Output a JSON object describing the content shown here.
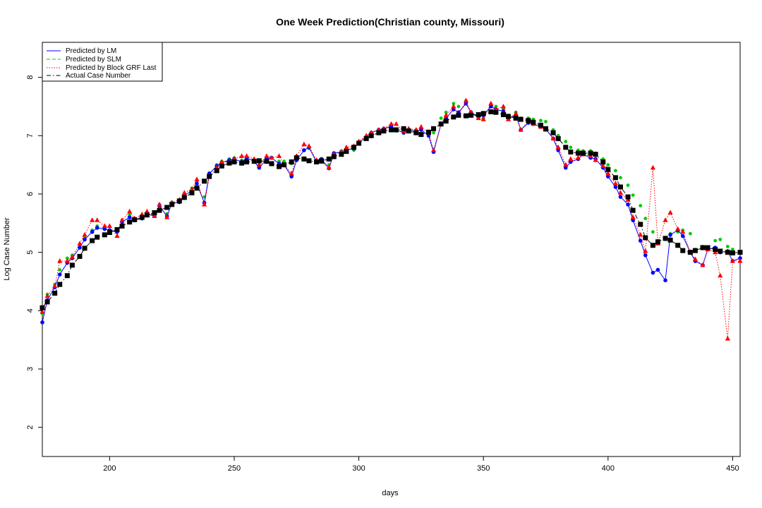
{
  "chart_data": {
    "type": "line",
    "title": "One Week Prediction(Christian county, Missouri)",
    "xlabel": "days",
    "ylabel": "Log Case Number",
    "xlim": [
      173,
      453
    ],
    "ylim": [
      1.5,
      8.6
    ],
    "xticks": [
      200,
      250,
      300,
      350,
      400,
      450
    ],
    "yticks": [
      2,
      3,
      4,
      5,
      6,
      7,
      8
    ],
    "legend_position": "top-left",
    "grid": false,
    "colors": {
      "lm": "#0000ff",
      "slm": "#00cc00",
      "grf": "#ff0000",
      "actual": "#000000"
    },
    "legend": [
      {
        "key": "lm",
        "label": "Predicted by LM",
        "style": "solid"
      },
      {
        "key": "slm",
        "label": "Predicted by SLM",
        "style": "dashed"
      },
      {
        "key": "grf",
        "label": "Predicted by Block GRF Last",
        "style": "dotted"
      },
      {
        "key": "actual",
        "label": "Actual Case Number",
        "style": "dashdot"
      }
    ],
    "series": [
      {
        "key": "actual",
        "name": "Actual Case Number",
        "x": [
          173,
          175,
          178,
          180,
          183,
          185,
          188,
          190,
          193,
          195,
          198,
          200,
          203,
          205,
          208,
          210,
          213,
          215,
          218,
          220,
          223,
          225,
          228,
          230,
          233,
          235,
          238,
          240,
          243,
          245,
          248,
          250,
          253,
          255,
          258,
          260,
          263,
          265,
          268,
          270,
          273,
          275,
          278,
          280,
          283,
          285,
          288,
          290,
          293,
          295,
          298,
          300,
          303,
          305,
          308,
          310,
          313,
          315,
          318,
          320,
          323,
          325,
          328,
          330,
          333,
          335,
          338,
          340,
          343,
          345,
          348,
          350,
          353,
          355,
          358,
          360,
          363,
          365,
          368,
          370,
          373,
          375,
          378,
          380,
          383,
          385,
          388,
          390,
          393,
          395,
          398,
          400,
          403,
          405,
          408,
          410,
          413,
          415,
          418,
          420,
          423,
          425,
          428,
          430,
          433,
          435,
          438,
          440,
          443,
          445,
          448,
          450,
          453
        ],
        "y": [
          4.05,
          4.15,
          4.3,
          4.45,
          4.6,
          4.78,
          4.93,
          5.07,
          5.2,
          5.26,
          5.3,
          5.34,
          5.39,
          5.45,
          5.52,
          5.56,
          5.6,
          5.64,
          5.68,
          5.72,
          5.77,
          5.82,
          5.88,
          5.94,
          6.02,
          6.1,
          6.22,
          6.3,
          6.4,
          6.48,
          6.53,
          6.55,
          6.53,
          6.55,
          6.56,
          6.57,
          6.56,
          6.52,
          6.47,
          6.5,
          6.55,
          6.62,
          6.6,
          6.57,
          6.55,
          6.57,
          6.6,
          6.64,
          6.68,
          6.73,
          6.8,
          6.87,
          6.95,
          7.0,
          7.05,
          7.08,
          7.1,
          7.1,
          7.12,
          7.08,
          7.05,
          7.02,
          7.06,
          7.12,
          7.2,
          7.25,
          7.32,
          7.35,
          7.34,
          7.35,
          7.36,
          7.38,
          7.41,
          7.4,
          7.36,
          7.33,
          7.3,
          7.28,
          7.26,
          7.23,
          7.18,
          7.12,
          7.05,
          6.95,
          6.8,
          6.72,
          6.7,
          6.7,
          6.7,
          6.68,
          6.55,
          6.42,
          6.28,
          6.12,
          5.95,
          5.72,
          5.48,
          5.25,
          5.12,
          5.18,
          5.24,
          5.21,
          5.12,
          5.03,
          5.0,
          5.03,
          5.08,
          5.08,
          5.05,
          5.02,
          5.0,
          4.99,
          5.0
        ]
      },
      {
        "key": "lm",
        "name": "Predicted by LM",
        "x": [
          173,
          175,
          178,
          180,
          183,
          185,
          188,
          190,
          193,
          195,
          198,
          200,
          203,
          205,
          208,
          210,
          213,
          215,
          218,
          220,
          223,
          225,
          228,
          230,
          233,
          235,
          238,
          240,
          243,
          245,
          248,
          250,
          253,
          255,
          258,
          260,
          263,
          265,
          268,
          270,
          273,
          275,
          278,
          280,
          283,
          285,
          288,
          290,
          293,
          295,
          298,
          300,
          303,
          305,
          308,
          310,
          313,
          315,
          318,
          320,
          323,
          325,
          328,
          330,
          333,
          335,
          338,
          340,
          343,
          345,
          348,
          350,
          353,
          355,
          358,
          360,
          363,
          365,
          368,
          370,
          373,
          375,
          378,
          380,
          383,
          385,
          388,
          390,
          393,
          395,
          398,
          400,
          403,
          405,
          408,
          410,
          413,
          415,
          418,
          420,
          423,
          425,
          428,
          430,
          433,
          435,
          438,
          440,
          443,
          445,
          448,
          450,
          453
        ],
        "y": [
          3.8,
          4.18,
          4.4,
          4.62,
          4.82,
          4.9,
          5.08,
          5.22,
          5.35,
          5.42,
          5.4,
          5.38,
          5.35,
          5.52,
          5.6,
          5.55,
          5.58,
          5.66,
          5.62,
          5.8,
          5.62,
          5.84,
          5.86,
          5.98,
          6.05,
          6.18,
          5.85,
          6.35,
          6.48,
          6.54,
          6.58,
          6.6,
          6.55,
          6.62,
          6.56,
          6.45,
          6.6,
          6.62,
          6.52,
          6.5,
          6.3,
          6.58,
          6.75,
          6.8,
          6.55,
          6.6,
          6.44,
          6.7,
          6.72,
          6.76,
          6.78,
          6.88,
          6.98,
          7.05,
          7.1,
          7.12,
          7.16,
          7.1,
          7.05,
          7.1,
          7.08,
          7.1,
          7.0,
          6.72,
          7.2,
          7.3,
          7.45,
          7.4,
          7.55,
          7.4,
          7.32,
          7.35,
          7.5,
          7.45,
          7.42,
          7.3,
          7.35,
          7.1,
          7.22,
          7.2,
          7.15,
          7.12,
          6.95,
          6.75,
          6.45,
          6.55,
          6.6,
          6.68,
          6.62,
          6.6,
          6.45,
          6.3,
          6.12,
          5.95,
          5.82,
          5.55,
          5.2,
          4.95,
          4.65,
          4.7,
          4.52,
          5.3,
          5.38,
          5.28,
          5.0,
          4.85,
          4.78,
          5.05,
          5.08,
          5.0,
          5.02,
          4.85,
          4.9
        ]
      },
      {
        "key": "slm",
        "name": "Predicted by SLM",
        "x": [
          173,
          175,
          178,
          180,
          183,
          185,
          188,
          190,
          193,
          195,
          198,
          200,
          203,
          205,
          208,
          210,
          213,
          215,
          218,
          220,
          223,
          225,
          228,
          230,
          233,
          235,
          238,
          240,
          243,
          245,
          248,
          250,
          253,
          255,
          258,
          260,
          263,
          265,
          268,
          270,
          273,
          275,
          278,
          280,
          283,
          285,
          288,
          290,
          293,
          295,
          298,
          300,
          303,
          305,
          308,
          310,
          313,
          315,
          318,
          320,
          323,
          325,
          328,
          330,
          333,
          335,
          338,
          340,
          343,
          345,
          348,
          350,
          353,
          355,
          358,
          360,
          363,
          365,
          368,
          370,
          373,
          375,
          378,
          380,
          383,
          385,
          388,
          390,
          393,
          395,
          398,
          400,
          403,
          405,
          408,
          410,
          413,
          415,
          418,
          420,
          423,
          425,
          428,
          430,
          433,
          435,
          438,
          440,
          443,
          445,
          448,
          450,
          453
        ],
        "y": [
          3.95,
          4.28,
          4.45,
          4.7,
          4.9,
          4.95,
          5.1,
          5.25,
          5.38,
          5.45,
          5.42,
          5.35,
          5.4,
          5.55,
          5.65,
          5.58,
          5.6,
          5.68,
          5.64,
          5.82,
          5.66,
          5.86,
          5.88,
          6.0,
          6.1,
          6.2,
          5.95,
          6.36,
          6.5,
          6.56,
          6.6,
          6.62,
          6.58,
          6.64,
          6.58,
          6.5,
          6.62,
          6.62,
          6.56,
          6.56,
          6.52,
          6.6,
          6.75,
          6.78,
          6.58,
          6.6,
          6.5,
          6.7,
          6.74,
          6.76,
          6.75,
          6.88,
          6.98,
          7.05,
          7.1,
          7.12,
          7.15,
          7.08,
          7.06,
          7.1,
          7.1,
          7.1,
          7.05,
          7.05,
          7.3,
          7.4,
          7.55,
          7.5,
          7.6,
          7.4,
          7.3,
          7.3,
          7.5,
          7.5,
          7.46,
          7.35,
          7.4,
          7.3,
          7.3,
          7.28,
          7.26,
          7.24,
          7.1,
          7.0,
          6.9,
          6.8,
          6.75,
          6.74,
          6.74,
          6.7,
          6.6,
          6.5,
          6.4,
          6.28,
          6.15,
          5.98,
          5.8,
          5.58,
          5.35,
          5.2,
          5.22,
          5.32,
          5.35,
          5.38,
          5.32,
          5.05,
          5.1,
          5.05,
          5.2,
          5.22,
          5.1,
          5.05,
          5.0
        ]
      },
      {
        "key": "grf",
        "name": "Predicted by Block GRF Last",
        "x": [
          173,
          175,
          178,
          180,
          183,
          185,
          188,
          190,
          193,
          195,
          198,
          200,
          203,
          205,
          208,
          210,
          213,
          215,
          218,
          220,
          223,
          225,
          228,
          230,
          233,
          235,
          238,
          240,
          243,
          245,
          248,
          250,
          253,
          255,
          258,
          260,
          263,
          265,
          268,
          270,
          273,
          275,
          278,
          280,
          283,
          285,
          288,
          290,
          293,
          295,
          298,
          300,
          303,
          305,
          308,
          310,
          313,
          315,
          318,
          320,
          323,
          325,
          328,
          330,
          333,
          335,
          338,
          340,
          343,
          345,
          348,
          350,
          353,
          355,
          358,
          360,
          363,
          365,
          368,
          370,
          373,
          375,
          378,
          380,
          383,
          385,
          388,
          390,
          393,
          395,
          398,
          400,
          403,
          405,
          408,
          410,
          413,
          415,
          418,
          420,
          423,
          425,
          428,
          430,
          433,
          435,
          438,
          440,
          443,
          445,
          448,
          450,
          453
        ],
        "y": [
          3.98,
          4.25,
          4.42,
          4.85,
          4.85,
          4.92,
          5.15,
          5.3,
          5.55,
          5.55,
          5.45,
          5.45,
          5.28,
          5.55,
          5.7,
          5.58,
          5.65,
          5.7,
          5.62,
          5.82,
          5.6,
          5.85,
          5.9,
          6.02,
          6.08,
          6.25,
          5.82,
          6.3,
          6.45,
          6.55,
          6.55,
          6.6,
          6.65,
          6.65,
          6.6,
          6.5,
          6.65,
          6.62,
          6.65,
          6.5,
          6.35,
          6.65,
          6.85,
          6.82,
          6.58,
          6.55,
          6.45,
          6.68,
          6.72,
          6.8,
          6.82,
          6.9,
          7.0,
          7.05,
          7.1,
          7.12,
          7.2,
          7.2,
          7.08,
          7.12,
          7.1,
          7.15,
          7.05,
          6.75,
          7.2,
          7.35,
          7.5,
          7.35,
          7.6,
          7.4,
          7.3,
          7.28,
          7.55,
          7.45,
          7.5,
          7.28,
          7.38,
          7.1,
          7.25,
          7.2,
          7.15,
          7.1,
          6.95,
          6.8,
          6.5,
          6.6,
          6.62,
          6.68,
          6.65,
          6.58,
          6.48,
          6.35,
          6.18,
          6.02,
          5.9,
          5.6,
          5.3,
          5.02,
          6.45,
          5.15,
          5.55,
          5.68,
          5.4,
          5.35,
          5.0,
          4.88,
          4.78,
          5.05,
          5.0,
          4.6,
          3.52,
          4.85,
          4.85
        ]
      }
    ]
  }
}
